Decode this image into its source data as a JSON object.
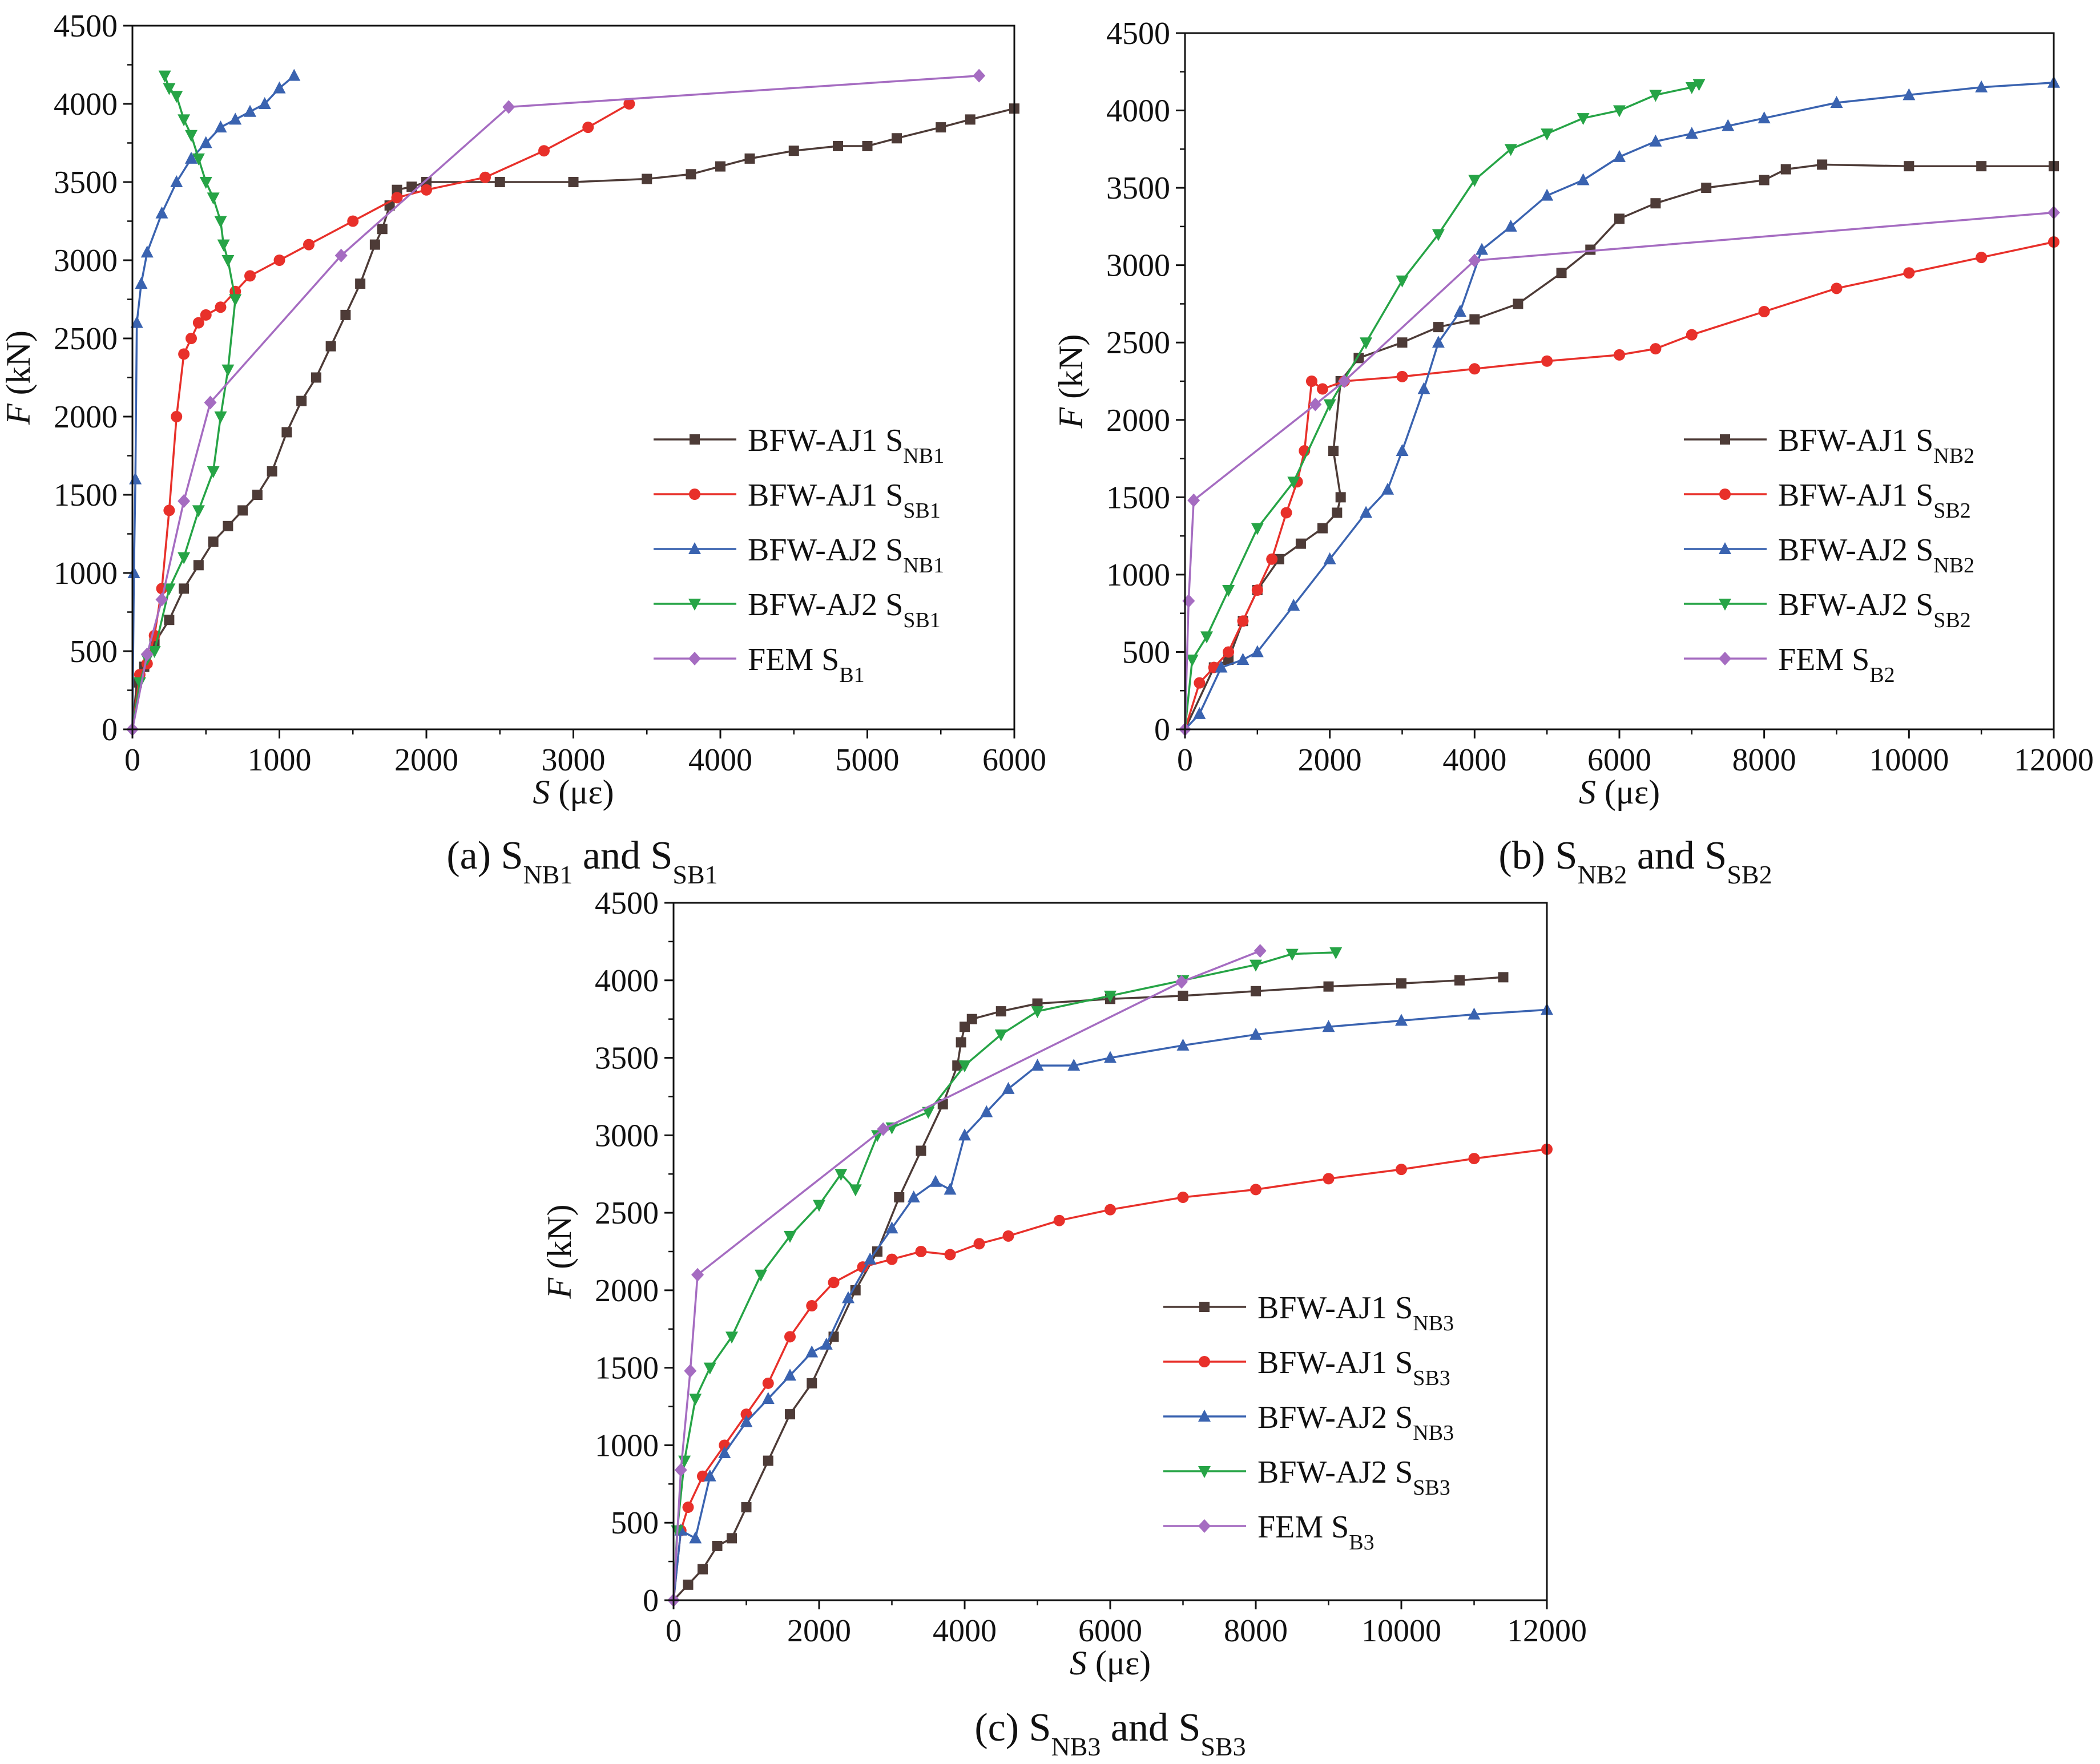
{
  "figure": {
    "panels": [
      {
        "id": "a",
        "caption": {
          "prefix": "(a) S",
          "sub1": "NB1",
          "mid": " and S",
          "sub2": "SB1"
        },
        "xlabel": {
          "var": "S",
          "unit": " (με)"
        },
        "ylabel": {
          "var": "F",
          "unit": " (kN)"
        },
        "x_ticks": [
          "0",
          "1000",
          "2000",
          "3000",
          "4000",
          "5000",
          "6000"
        ],
        "y_ticks": [
          "0",
          "500",
          "1000",
          "1500",
          "2000",
          "2500",
          "3000",
          "3500",
          "4000",
          "4500"
        ],
        "legend": [
          {
            "base": "BFW-AJ1 S",
            "sub": "NB1"
          },
          {
            "base": "BFW-AJ1 S",
            "sub": "SB1"
          },
          {
            "base": "BFW-AJ2 S",
            "sub": "NB1"
          },
          {
            "base": "BFW-AJ2 S",
            "sub": "SB1"
          },
          {
            "base": "FEM S",
            "sub": "B1"
          }
        ]
      },
      {
        "id": "b",
        "caption": {
          "prefix": "(b) S",
          "sub1": "NB2",
          "mid": " and S",
          "sub2": "SB2"
        },
        "xlabel": {
          "var": "S",
          "unit": " (με)"
        },
        "ylabel": {
          "var": "F",
          "unit": " (kN)"
        },
        "x_ticks": [
          "0",
          "2000",
          "4000",
          "6000",
          "8000",
          "10000",
          "12000"
        ],
        "y_ticks": [
          "0",
          "500",
          "1000",
          "1500",
          "2000",
          "2500",
          "3000",
          "3500",
          "4000",
          "4500"
        ],
        "legend": [
          {
            "base": "BFW-AJ1 S",
            "sub": "NB2"
          },
          {
            "base": "BFW-AJ1 S",
            "sub": "SB2"
          },
          {
            "base": "BFW-AJ2 S",
            "sub": "NB2"
          },
          {
            "base": "BFW-AJ2 S",
            "sub": "SB2"
          },
          {
            "base": "FEM S",
            "sub": "B2"
          }
        ]
      },
      {
        "id": "c",
        "caption": {
          "prefix": "(c) S",
          "sub1": "NB3",
          "mid": " and S",
          "sub2": "SB3"
        },
        "xlabel": {
          "var": "S",
          "unit": " (με)"
        },
        "ylabel": {
          "var": "F",
          "unit": " (kN)"
        },
        "x_ticks": [
          "0",
          "2000",
          "4000",
          "6000",
          "8000",
          "10000",
          "12000"
        ],
        "y_ticks": [
          "0",
          "500",
          "1000",
          "1500",
          "2000",
          "2500",
          "3000",
          "3500",
          "4000",
          "4500"
        ],
        "legend": [
          {
            "base": "BFW-AJ1 S",
            "sub": "NB3"
          },
          {
            "base": "BFW-AJ1 S",
            "sub": "SB3"
          },
          {
            "base": "BFW-AJ2 S",
            "sub": "NB3"
          },
          {
            "base": "BFW-AJ2 S",
            "sub": "SB3"
          },
          {
            "base": "FEM S",
            "sub": "B3"
          }
        ]
      }
    ]
  },
  "chart_data": [
    {
      "type": "line",
      "title": "(a) SNB1 and SSB1",
      "xlabel": "S (με)",
      "ylabel": "F (kN)",
      "xlim": [
        0,
        6000
      ],
      "ylim": [
        0,
        4500
      ],
      "series": [
        {
          "name": "BFW-AJ1 SNB1",
          "color": "#4d3b37",
          "marker": "square",
          "x": [
            0,
            30,
            80,
            150,
            250,
            350,
            450,
            550,
            650,
            750,
            850,
            950,
            1050,
            1150,
            1250,
            1350,
            1450,
            1550,
            1650,
            1700,
            1750,
            1800,
            1900,
            2000,
            2500,
            3000,
            3500,
            3800,
            4000,
            4200,
            4500,
            4800,
            5000,
            5200,
            5500,
            5700,
            6000
          ],
          "y": [
            0,
            300,
            400,
            550,
            700,
            900,
            1050,
            1200,
            1300,
            1400,
            1500,
            1650,
            1900,
            2100,
            2250,
            2450,
            2650,
            2850,
            3100,
            3200,
            3350,
            3450,
            3470,
            3500,
            3500,
            3500,
            3520,
            3550,
            3600,
            3650,
            3700,
            3730,
            3730,
            3780,
            3850,
            3900,
            3970
          ]
        },
        {
          "name": "BFW-AJ1 SSB1",
          "color": "#e8302a",
          "marker": "circle",
          "x": [
            0,
            50,
            100,
            150,
            200,
            250,
            300,
            350,
            400,
            450,
            500,
            600,
            700,
            800,
            1000,
            1200,
            1500,
            1800,
            2000,
            2400,
            2800,
            3100,
            3380
          ],
          "y": [
            0,
            350,
            420,
            600,
            900,
            1400,
            2000,
            2400,
            2500,
            2600,
            2650,
            2700,
            2800,
            2900,
            3000,
            3100,
            3250,
            3400,
            3450,
            3530,
            3700,
            3850,
            4000
          ]
        },
        {
          "name": "BFW-AJ2 SNB1",
          "color": "#3a63b0",
          "marker": "triangle-up",
          "x": [
            0,
            10,
            20,
            30,
            60,
            100,
            200,
            300,
            400,
            500,
            600,
            700,
            800,
            900,
            1000,
            1100
          ],
          "y": [
            0,
            1000,
            1600,
            2600,
            2850,
            3050,
            3300,
            3500,
            3650,
            3750,
            3850,
            3900,
            3950,
            4000,
            4100,
            4180
          ]
        },
        {
          "name": "BFW-AJ2 SSB1",
          "color": "#26a446",
          "marker": "triangle-down",
          "x": [
            0,
            50,
            100,
            150,
            250,
            350,
            450,
            550,
            600,
            650,
            700,
            650,
            620,
            600,
            550,
            500,
            450,
            400,
            350,
            300,
            250,
            220
          ],
          "y": [
            0,
            300,
            450,
            500,
            900,
            1100,
            1400,
            1650,
            2000,
            2300,
            2750,
            3000,
            3100,
            3250,
            3400,
            3500,
            3650,
            3800,
            3900,
            4050,
            4100,
            4180
          ]
        },
        {
          "name": "FEM SB1",
          "color": "#a56cc1",
          "marker": "diamond",
          "x": [
            0,
            100,
            200,
            350,
            530,
            1420,
            2560,
            5760
          ],
          "y": [
            0,
            480,
            830,
            1460,
            2090,
            3030,
            3980,
            4180
          ]
        }
      ]
    },
    {
      "type": "line",
      "title": "(b) SNB2 and SSB2",
      "xlabel": "S (με)",
      "ylabel": "F (kN)",
      "xlim": [
        0,
        12000
      ],
      "ylim": [
        0,
        4500
      ],
      "series": [
        {
          "name": "BFW-AJ1 SNB2",
          "color": "#4d3b37",
          "marker": "square",
          "x": [
            0,
            400,
            600,
            800,
            1000,
            1300,
            1600,
            1900,
            2100,
            2150,
            2050,
            2150,
            2400,
            3000,
            3500,
            4000,
            4600,
            5200,
            5600,
            6000,
            6500,
            7200,
            8000,
            8300,
            8800,
            10000,
            11000,
            12000
          ],
          "y": [
            0,
            400,
            450,
            700,
            900,
            1100,
            1200,
            1300,
            1400,
            1500,
            1800,
            2250,
            2400,
            2500,
            2600,
            2650,
            2750,
            2950,
            3100,
            3300,
            3400,
            3500,
            3550,
            3620,
            3650,
            3640,
            3640,
            3640
          ]
        },
        {
          "name": "BFW-AJ1 SSB2",
          "color": "#e8302a",
          "marker": "circle",
          "x": [
            0,
            200,
            400,
            600,
            800,
            1000,
            1200,
            1400,
            1550,
            1650,
            1750,
            1900,
            2200,
            3000,
            4000,
            5000,
            6000,
            6500,
            7000,
            8000,
            9000,
            10000,
            11000,
            12000
          ],
          "y": [
            0,
            300,
            400,
            500,
            700,
            900,
            1100,
            1400,
            1600,
            1800,
            2250,
            2200,
            2250,
            2280,
            2330,
            2380,
            2420,
            2460,
            2550,
            2700,
            2850,
            2950,
            3050,
            3150
          ]
        },
        {
          "name": "BFW-AJ2 SNB2",
          "color": "#3a63b0",
          "marker": "triangle-up",
          "x": [
            0,
            200,
            500,
            800,
            1000,
            1500,
            2000,
            2500,
            2800,
            3000,
            3300,
            3500,
            3800,
            4100,
            4500,
            5000,
            5500,
            6000,
            6500,
            7000,
            7500,
            8000,
            9000,
            10000,
            11000,
            12000
          ],
          "y": [
            0,
            100,
            400,
            450,
            500,
            800,
            1100,
            1400,
            1550,
            1800,
            2200,
            2500,
            2700,
            3100,
            3250,
            3450,
            3550,
            3700,
            3800,
            3850,
            3900,
            3950,
            4050,
            4100,
            4150,
            4180
          ]
        },
        {
          "name": "BFW-AJ2 SSB2",
          "color": "#26a446",
          "marker": "triangle-down",
          "x": [
            0,
            100,
            300,
            600,
            1000,
            1500,
            2000,
            2500,
            3000,
            3500,
            4000,
            4500,
            5000,
            5500,
            6000,
            6500,
            7000,
            7100
          ],
          "y": [
            0,
            450,
            600,
            900,
            1300,
            1600,
            2100,
            2500,
            2900,
            3200,
            3550,
            3750,
            3850,
            3950,
            4000,
            4100,
            4150,
            4170
          ]
        },
        {
          "name": "FEM SB2",
          "color": "#a56cc1",
          "marker": "diamond",
          "x": [
            0,
            50,
            120,
            1800,
            2200,
            4000,
            12000
          ],
          "y": [
            0,
            830,
            1480,
            2100,
            2250,
            3030,
            3340
          ]
        }
      ]
    },
    {
      "type": "line",
      "title": "(c) SNB3 and SSB3",
      "xlabel": "S (με)",
      "ylabel": "F (kN)",
      "xlim": [
        0,
        12000
      ],
      "ylim": [
        0,
        4500
      ],
      "series": [
        {
          "name": "BFW-AJ1 SNB3",
          "color": "#4d3b37",
          "marker": "square",
          "x": [
            0,
            200,
            400,
            600,
            800,
            1000,
            1300,
            1600,
            1900,
            2200,
            2500,
            2800,
            3100,
            3400,
            3700,
            3900,
            3950,
            4000,
            4100,
            4500,
            5000,
            6000,
            7000,
            8000,
            9000,
            10000,
            10800,
            11400
          ],
          "y": [
            0,
            100,
            200,
            350,
            400,
            600,
            900,
            1200,
            1400,
            1700,
            2000,
            2250,
            2600,
            2900,
            3200,
            3450,
            3600,
            3700,
            3750,
            3800,
            3850,
            3880,
            3900,
            3930,
            3960,
            3980,
            4000,
            4020
          ]
        },
        {
          "name": "BFW-AJ1 SSB3",
          "color": "#e8302a",
          "marker": "circle",
          "x": [
            0,
            100,
            200,
            400,
            700,
            1000,
            1300,
            1600,
            1900,
            2200,
            2600,
            3000,
            3400,
            3800,
            4200,
            4600,
            5300,
            6000,
            7000,
            8000,
            9000,
            10000,
            11000,
            12000
          ],
          "y": [
            0,
            450,
            600,
            800,
            1000,
            1200,
            1400,
            1700,
            1900,
            2050,
            2150,
            2200,
            2250,
            2230,
            2300,
            2350,
            2450,
            2520,
            2600,
            2650,
            2720,
            2780,
            2850,
            2910
          ]
        },
        {
          "name": "BFW-AJ2 SNB3",
          "color": "#3a63b0",
          "marker": "triangle-up",
          "x": [
            0,
            100,
            300,
            500,
            700,
            1000,
            1300,
            1600,
            1900,
            2100,
            2400,
            2700,
            3000,
            3300,
            3600,
            3800,
            4000,
            4300,
            4600,
            5000,
            5500,
            6000,
            7000,
            8000,
            9000,
            10000,
            11000,
            12000
          ],
          "y": [
            0,
            450,
            400,
            800,
            950,
            1150,
            1300,
            1450,
            1600,
            1650,
            1950,
            2200,
            2400,
            2600,
            2700,
            2650,
            3000,
            3150,
            3300,
            3450,
            3450,
            3500,
            3580,
            3650,
            3700,
            3740,
            3780,
            3810
          ]
        },
        {
          "name": "BFW-AJ2 SSB3",
          "color": "#26a446",
          "marker": "triangle-down",
          "x": [
            0,
            50,
            150,
            300,
            500,
            800,
            1200,
            1600,
            2000,
            2300,
            2500,
            2800,
            3000,
            3500,
            4000,
            4500,
            5000,
            6000,
            7000,
            8000,
            8500,
            9100
          ],
          "y": [
            0,
            450,
            900,
            1300,
            1500,
            1700,
            2100,
            2350,
            2550,
            2750,
            2650,
            3000,
            3050,
            3150,
            3450,
            3650,
            3800,
            3900,
            4000,
            4100,
            4170,
            4180
          ]
        },
        {
          "name": "FEM SB3",
          "color": "#a56cc1",
          "marker": "diamond",
          "x": [
            0,
            100,
            230,
            330,
            2880,
            6980,
            8060
          ],
          "y": [
            0,
            840,
            1480,
            2100,
            3040,
            3990,
            4190
          ]
        }
      ]
    }
  ]
}
